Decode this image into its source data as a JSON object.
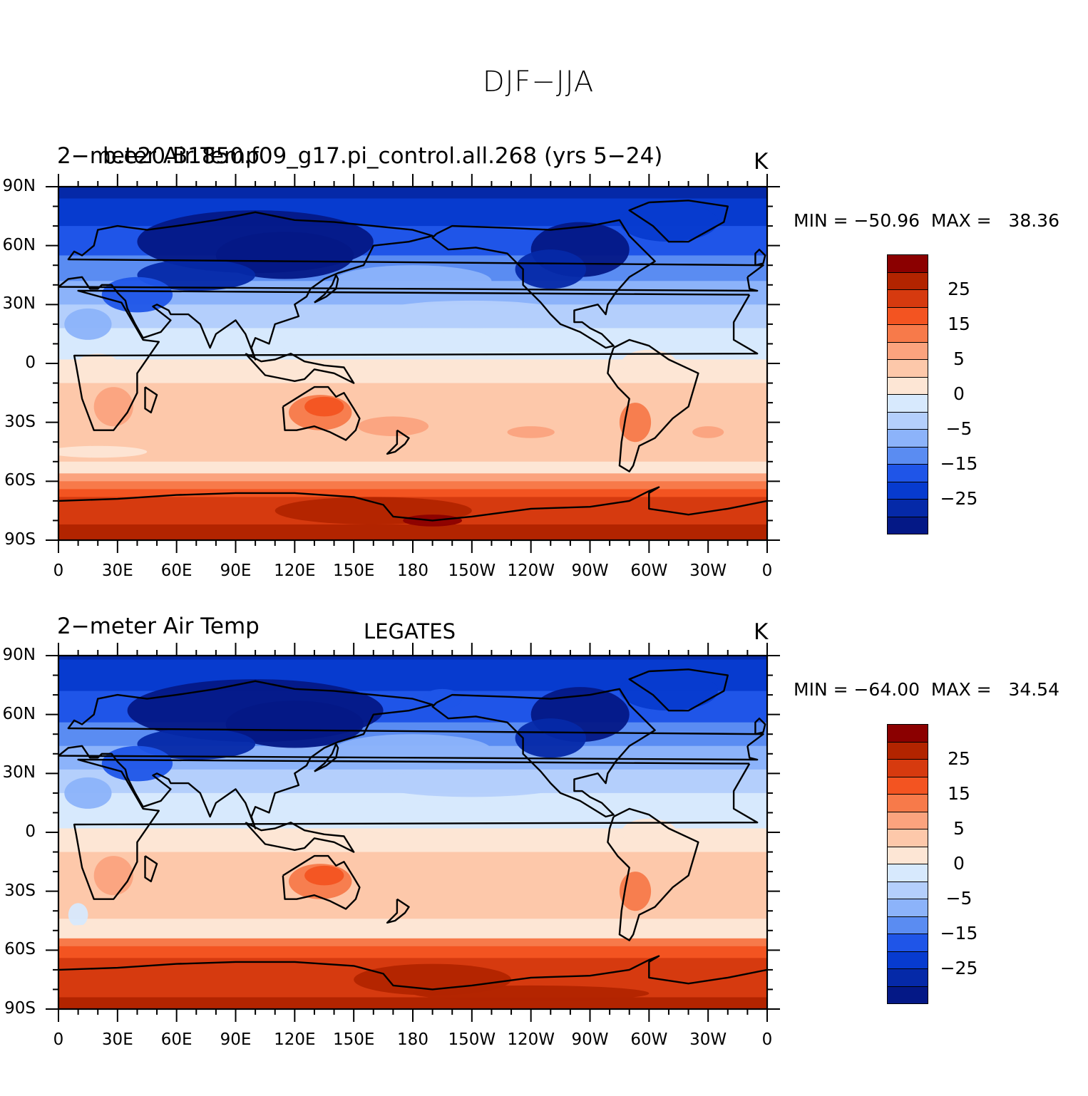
{
  "title": "DJF−JJA",
  "colorbar": {
    "levels": [
      30,
      25,
      20,
      15,
      10,
      5,
      0,
      -2.5,
      -5,
      -10,
      -15,
      -20,
      -25,
      -30,
      -35
    ],
    "colors": [
      "#8b0000",
      "#b22400",
      "#d63a0f",
      "#f35421",
      "#f77a4a",
      "#fba37e",
      "#fdc8aa",
      "#fde6d5",
      "#d7e9fd",
      "#b4cffc",
      "#8cb3fa",
      "#5a8cf2",
      "#1f55e8",
      "#073bcf",
      "#0529a8",
      "#041886"
    ],
    "tick_labels": [
      "25",
      "15",
      "5",
      "0",
      "−5",
      "−15",
      "−25"
    ]
  },
  "axes": {
    "lat_labels": [
      "90N",
      "60N",
      "30N",
      "0",
      "30S",
      "60S",
      "90S"
    ],
    "lon_labels": [
      "0",
      "30E",
      "60E",
      "90E",
      "120E",
      "150E",
      "180",
      "150W",
      "120W",
      "90W",
      "60W",
      "30W",
      "0"
    ]
  },
  "panels": [
    {
      "left_label": "2−meter Air Temp",
      "left_label_overlap": "b.e20.B1850.f09_g17.pi_control.all.268 (yrs 5−24)",
      "center_label": "",
      "units": "K",
      "stats": "MIN = −50.96  MAX =   38.36",
      "variable": "2-meter air temperature difference",
      "season": "DJF−JJA"
    },
    {
      "left_label": "2−meter Air Temp",
      "left_label_overlap": "",
      "center_label": "LEGATES",
      "units": "K",
      "stats": "MIN = −64.00  MAX =   34.54",
      "variable": "2-meter air temperature difference",
      "season": "DJF−JJA"
    }
  ]
}
